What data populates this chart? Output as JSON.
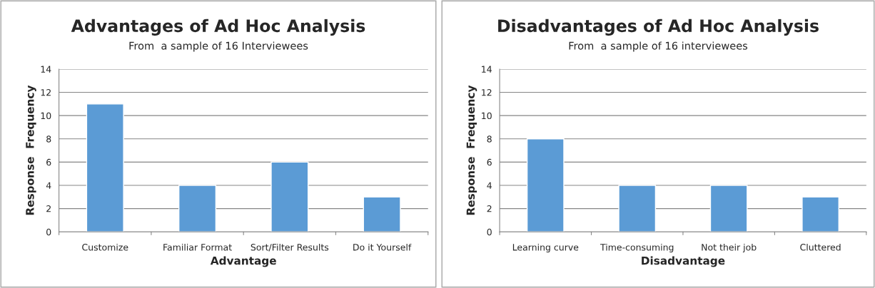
{
  "chart_data": [
    {
      "type": "bar",
      "title": "Advantages of Ad Hoc Analysis",
      "subtitle": "From  a sample of 16 Interviewees",
      "xlabel": "Advantage",
      "ylabel": "Response  Frequency",
      "categories": [
        "Customize",
        "Familiar Format",
        "Sort/Filter Results",
        "Do it Yourself"
      ],
      "values": [
        11,
        4,
        6,
        3
      ],
      "color": "#5b9bd5",
      "ylim": [
        0,
        14
      ],
      "yticks": [
        0,
        2,
        4,
        6,
        8,
        10,
        12,
        14
      ],
      "grid": "y"
    },
    {
      "type": "bar",
      "title": "Disadvantages of Ad Hoc Analysis",
      "subtitle": "From  a sample of 16 interviewees",
      "xlabel": "Disadvantage",
      "ylabel": "Response  Frequency",
      "categories": [
        "Learning curve",
        "Time-consuming",
        "Not their job",
        "Cluttered"
      ],
      "values": [
        8,
        4,
        4,
        3
      ],
      "color": "#5b9bd5",
      "ylim": [
        0,
        14
      ],
      "yticks": [
        0,
        2,
        4,
        6,
        8,
        10,
        12,
        14
      ],
      "grid": "y"
    }
  ]
}
